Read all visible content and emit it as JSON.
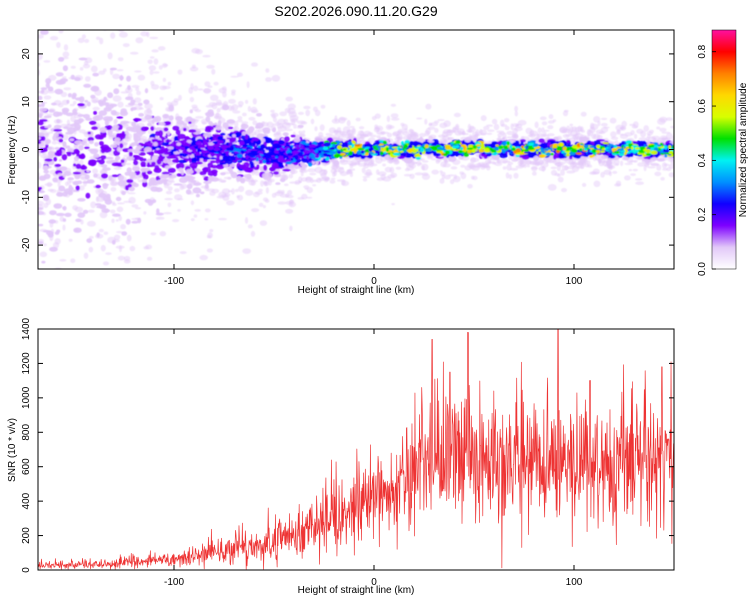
{
  "figure_title": "S202.2026.090.11.20.G29",
  "chart_data": [
    {
      "type": "heatmap",
      "title": "S202.2026.090.11.20.G29",
      "xlabel": "Height of straight line (km)",
      "ylabel": "Frequency (Hz)",
      "xlim": [
        -168,
        150
      ],
      "ylim": [
        -25,
        25
      ],
      "xticks": [
        -100,
        0,
        100
      ],
      "yticks": [
        -20,
        -10,
        0,
        10,
        20
      ],
      "colorbar": {
        "label": "Normalized spectral amplitude",
        "range": [
          0.0,
          0.88
        ],
        "ticks": [
          0.0,
          0.2,
          0.4,
          0.6,
          0.8
        ],
        "colors": [
          "#ffffff",
          "#e2c8f8",
          "#7d00ff",
          "#1000ff",
          "#0090ff",
          "#00f2f2",
          "#00e000",
          "#d8ff00",
          "#ffd800",
          "#ff8000",
          "#ff0000",
          "#ff10a0"
        ]
      },
      "ridge": {
        "description_points_x": [
          -168,
          -130,
          -100,
          -80,
          -50,
          -30,
          -10,
          0,
          50,
          100,
          150
        ],
        "center_freq_hz": [
          0,
          0,
          0,
          0,
          -1,
          -0.5,
          0,
          0,
          0.2,
          0,
          0
        ],
        "half_width_hz": [
          25,
          16,
          8,
          7,
          5,
          3,
          1.8,
          1.6,
          1.6,
          1.6,
          1.6
        ],
        "peak_amplitude": [
          0.15,
          0.18,
          0.25,
          0.3,
          0.35,
          0.35,
          0.75,
          0.65,
          0.7,
          0.75,
          0.6
        ],
        "accent_color": "#7d00ff"
      }
    },
    {
      "type": "line",
      "xlabel": "Height of straight line (km)",
      "ylabel": "SNR (10 * v/v)",
      "xlim": [
        -168,
        150
      ],
      "ylim": [
        0,
        1400
      ],
      "xticks": [
        -100,
        0,
        100
      ],
      "yticks": [
        0,
        200,
        400,
        600,
        800,
        1000,
        1200,
        1400
      ],
      "line_color": "#ee3333",
      "envelope": {
        "x": [
          -168,
          -130,
          -100,
          -80,
          -60,
          -40,
          -20,
          0,
          20,
          40,
          60,
          80,
          100,
          120,
          150
        ],
        "mean": [
          25,
          35,
          65,
          95,
          140,
          210,
          310,
          420,
          560,
          680,
          640,
          610,
          640,
          600,
          640
        ],
        "spread": [
          10,
          15,
          25,
          35,
          50,
          70,
          100,
          120,
          160,
          200,
          190,
          190,
          180,
          180,
          180
        ],
        "peaks": [
          [
            29,
            1340
          ],
          [
            47,
            1380
          ],
          [
            92,
            1400
          ],
          [
            144,
            1180
          ],
          [
            38,
            1150
          ],
          [
            108,
            1100
          ]
        ]
      }
    }
  ]
}
